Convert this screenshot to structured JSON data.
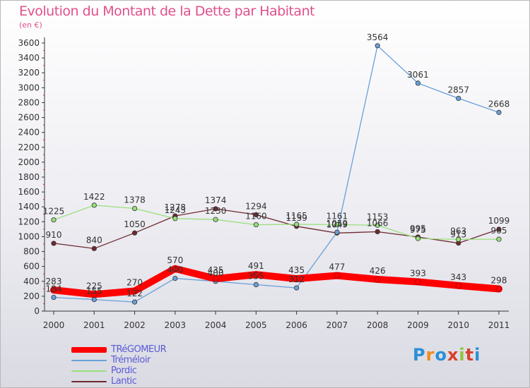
{
  "header": {
    "title": "Evolution du Montant de la Dette par Habitant",
    "subtitle": "(en €)"
  },
  "logo": {
    "text": "Proxiti",
    "letter_colors": [
      "#2a8fd6",
      "#f08a1c",
      "#2a8fd6",
      "#d8402a",
      "#8fc63a",
      "#d8402a",
      "#2a8fd6"
    ]
  },
  "chart_data": {
    "type": "line",
    "x": [
      "2000",
      "2001",
      "2002",
      "2003",
      "2004",
      "2005",
      "2006",
      "2007",
      "2008",
      "2009",
      "2010",
      "2011"
    ],
    "ylim": [
      0,
      3600
    ],
    "yticks": [
      0,
      200,
      400,
      600,
      800,
      1000,
      1200,
      1400,
      1600,
      1800,
      2000,
      2200,
      2400,
      2600,
      2800,
      3000,
      3200,
      3400,
      3600
    ],
    "grid": false,
    "legend_position": "bottom-left",
    "series": [
      {
        "name": "TRéGOMEUR",
        "color": "#ff0000",
        "values": [
          283,
          225,
          270,
          570,
          435,
          491,
          435,
          477,
          426,
          393,
          343,
          298
        ],
        "labels": [
          "283",
          "225",
          "270",
          "570",
          "435",
          "491",
          "435",
          "477",
          "426",
          "393",
          "343",
          "298"
        ]
      },
      {
        "name": "Tréméloir",
        "color": "#6aa0d8",
        "values": [
          184,
          155,
          122,
          440,
          400,
          355,
          312,
          1059,
          3564,
          3061,
          2857,
          2668
        ],
        "labels": [
          "184",
          "155",
          "122",
          "440",
          "400",
          "355",
          "312",
          "1059",
          "3564",
          "3061",
          "2857",
          "2668"
        ]
      },
      {
        "name": "Pordic",
        "color": "#99e07a",
        "values": [
          1225,
          1422,
          1378,
          1243,
          1230,
          1160,
          1165,
          1161,
          1153,
          975,
          963,
          965
        ],
        "labels": [
          "1225",
          "1422",
          "1378",
          "1243",
          "1230",
          "1160",
          "1165",
          "1161",
          "1153",
          "975",
          "963",
          "965"
        ]
      },
      {
        "name": "Lantic",
        "color": "#6e2a30",
        "values": [
          910,
          840,
          1050,
          1278,
          1374,
          1294,
          1139,
          1049,
          1066,
          995,
          913,
          1099
        ],
        "labels": [
          "910",
          "840",
          "1050",
          "1278",
          "1374",
          "1294",
          "1139",
          "1049",
          "1066",
          "995",
          "913",
          "1099"
        ]
      }
    ]
  }
}
